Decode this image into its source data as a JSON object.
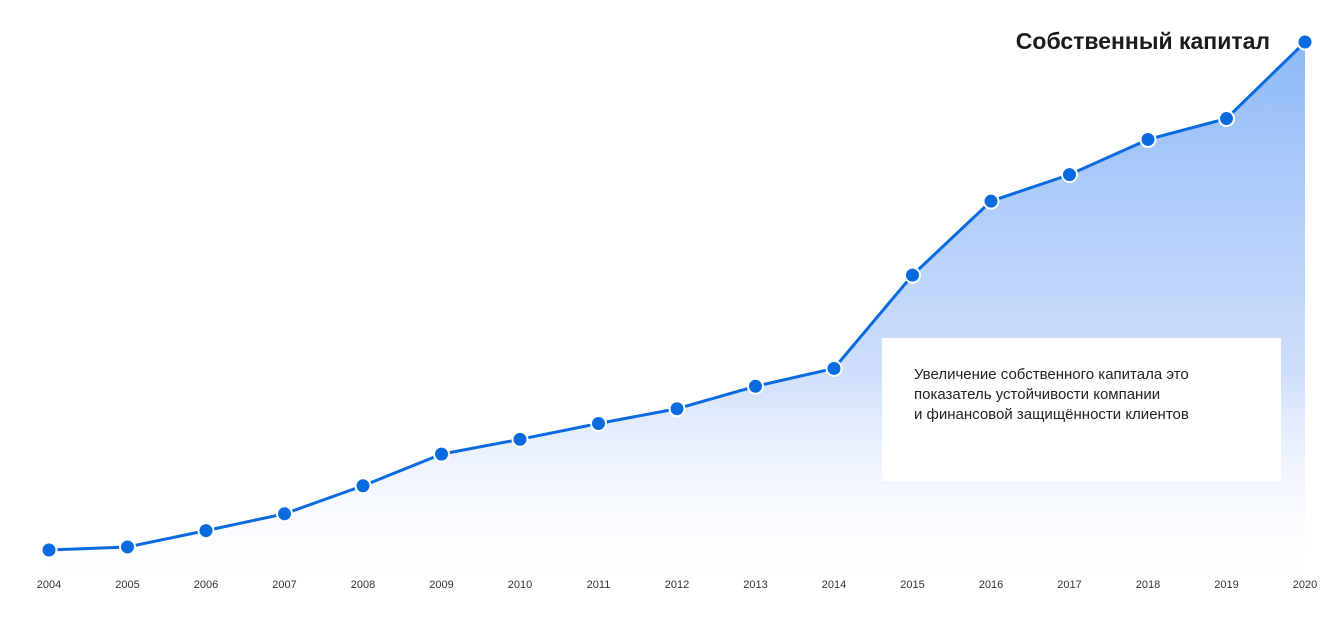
{
  "chart_data": {
    "type": "area",
    "title": "Собственный капитал",
    "xlabel": "",
    "ylabel": "",
    "categories": [
      "2004",
      "2005",
      "2006",
      "2007",
      "2008",
      "2009",
      "2010",
      "2011",
      "2012",
      "2013",
      "2014",
      "2015",
      "2016",
      "2017",
      "2018",
      "2019",
      "2020"
    ],
    "series": [
      {
        "values": [
          0.0,
          0.6,
          3.8,
          7.1,
          12.6,
          18.8,
          21.7,
          24.8,
          27.7,
          32.1,
          35.6,
          53.9,
          68.4,
          73.6,
          80.5,
          84.6,
          99.6
        ]
      }
    ],
    "ylim": [
      0,
      100
    ],
    "grid": false,
    "legend": "none",
    "colors": {
      "line": "#0a6be0",
      "marker_fill": "#0a6be0",
      "marker_stroke": "#ffffff",
      "area_top": "#8dbaf6",
      "area_bottom": "#ffffff"
    },
    "annotation": {
      "lines": [
        "Увеличение собственного капитала это",
        "показатель устойчивости компании",
        "и финансовой защищённости клиентов"
      ]
    }
  }
}
